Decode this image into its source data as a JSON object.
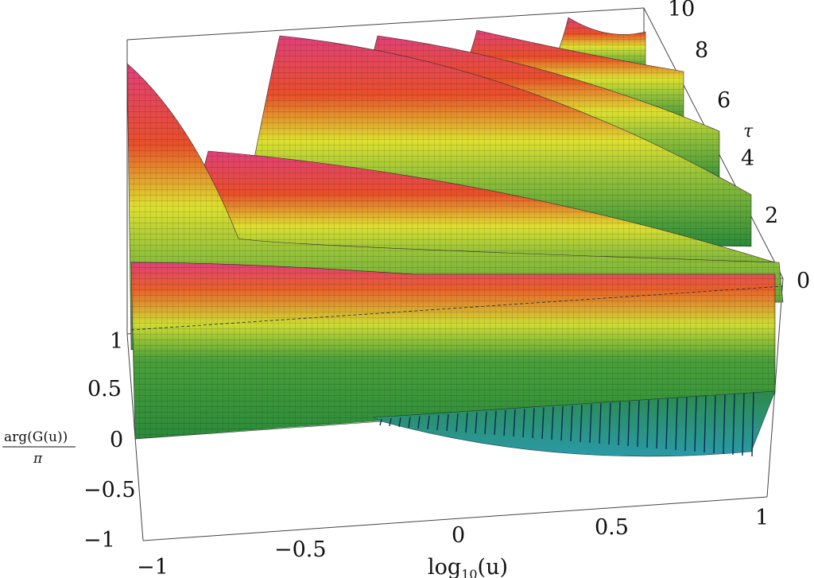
{
  "chart_data": {
    "type": "surface3d",
    "title": "",
    "x_axis": {
      "label_parts": [
        "log",
        "10",
        "(u)"
      ],
      "ticks": [
        "−1",
        "−0.5",
        "0",
        "0.5",
        "1"
      ],
      "range": [
        -1,
        1
      ]
    },
    "y_axis": {
      "label": "τ",
      "ticks": [
        "0",
        "2",
        "4",
        "6",
        "8",
        "10"
      ],
      "range": [
        0,
        10
      ]
    },
    "z_axis": {
      "label_numerator": "arg(G(u))",
      "label_denominator": "π",
      "ticks": [
        "−1",
        "−0.5",
        "0",
        "0.5",
        "1"
      ],
      "range": [
        -1,
        1
      ]
    },
    "colors": [
      "#2a8a3a",
      "#dde030",
      "#e84f2a",
      "#e0407a",
      "#2aa0b0"
    ]
  }
}
